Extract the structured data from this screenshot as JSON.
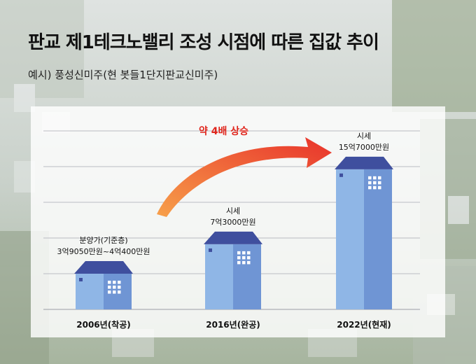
{
  "header": {
    "title": "판교 제1테크노밸리 조성 시점에 따른 집값 추이",
    "subtitle": "예시) 풍성신미주(현 봇들1단지판교신미주)"
  },
  "colors": {
    "building_light": "#8fb6e6",
    "building_dark": "#6f95d4",
    "roof": "#3f4f9e",
    "arrow_start": "#f7a04a",
    "arrow_end": "#e8322b",
    "annotation": "#e0251c",
    "panel": "#ffffff"
  },
  "chart_data": {
    "type": "bar",
    "categories": [
      "2006년(착공)",
      "2016년(완공)",
      "2022년(현재)"
    ],
    "values": [
      4.0,
      7.3,
      15.7
    ],
    "unit": "억원",
    "value_labels": [
      [
        "분양가(기준층)",
        "3억9050만원~4억400만원"
      ],
      [
        "시세",
        "7억3000만원"
      ],
      [
        "시세",
        "15억7000만원"
      ]
    ],
    "annotation": "약 4배 상승",
    "ylim": [
      0,
      20
    ],
    "grid": true,
    "legend": "none"
  }
}
